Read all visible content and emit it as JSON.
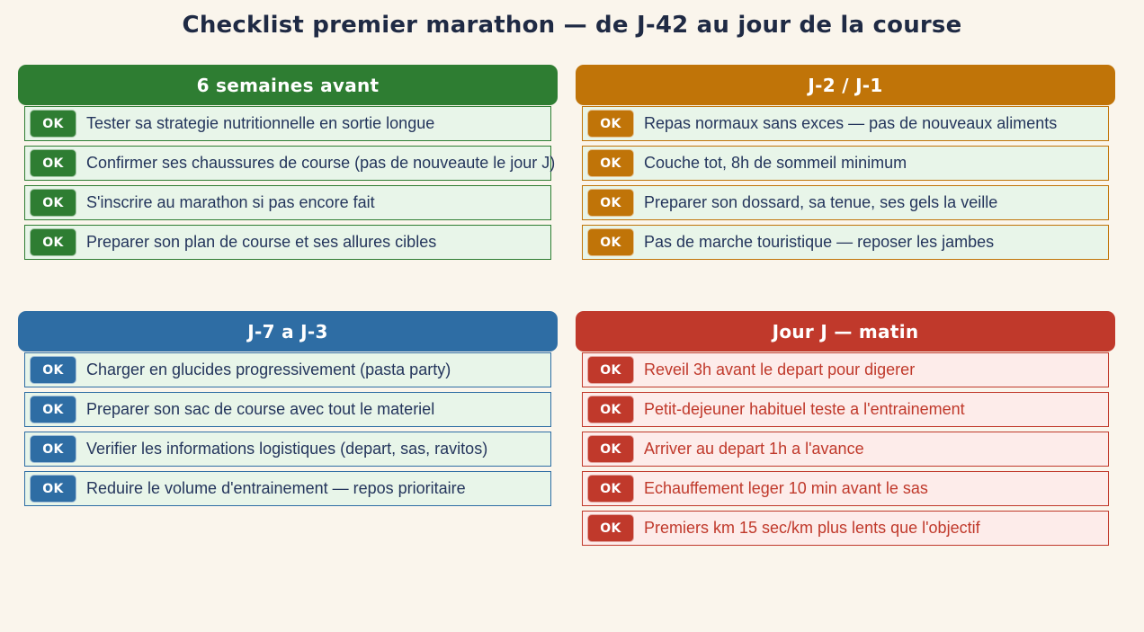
{
  "page": {
    "title": "Checklist premier marathon — de J-42 au jour de la course",
    "background": "#faf5ec",
    "title_color": "#1f2a44"
  },
  "ok_label": "OK",
  "sections": [
    {
      "title": "6 semaines avant",
      "accent": "#2e7d32",
      "item_bg": "#e8f5e9",
      "item_text": "#24355c",
      "items": [
        "Tester sa strategie nutritionnelle en sortie longue",
        "Confirmer ses chaussures de course (pas de nouveaute le jour J)",
        "S'inscrire au marathon si pas encore fait",
        "Preparer son plan de course et ses allures cibles"
      ]
    },
    {
      "title": "J-2 / J-1",
      "accent": "#c07408",
      "item_bg": "#e8f5e9",
      "item_text": "#24355c",
      "items": [
        "Repas normaux sans exces — pas de nouveaux aliments",
        "Couche tot, 8h de sommeil minimum",
        "Preparer son dossard, sa tenue, ses gels la veille",
        "Pas de marche touristique — reposer les jambes"
      ]
    },
    {
      "title": "J-7 a J-3",
      "accent": "#2e6da4",
      "item_bg": "#e8f5e9",
      "item_text": "#24355c",
      "items": [
        "Charger en glucides progressivement (pasta party)",
        "Preparer son sac de course avec tout le materiel",
        "Verifier les informations logistiques (depart, sas, ravitos)",
        "Reduire le volume d'entrainement — repos prioritaire"
      ]
    },
    {
      "title": "Jour J — matin",
      "accent": "#c0392b",
      "item_bg": "#fdecea",
      "item_text": "#c0392b",
      "items": [
        "Reveil 3h avant le depart pour digerer",
        "Petit-dejeuner habituel teste a l'entrainement",
        "Arriver au depart 1h a l'avance",
        "Echauffement leger 10 min avant le sas",
        "Premiers km 15 sec/km plus lents que l'objectif"
      ]
    }
  ]
}
